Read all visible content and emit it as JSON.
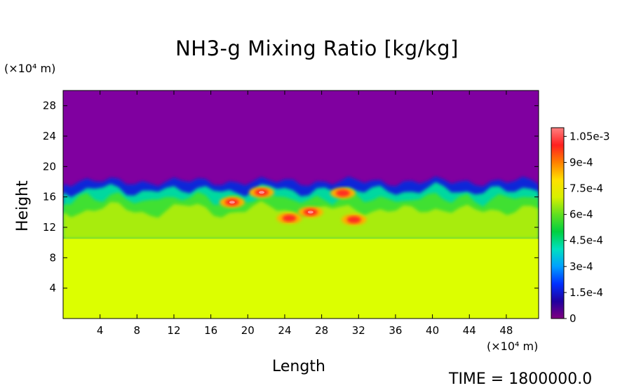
{
  "chart_data": {
    "type": "heatmap",
    "title": "NH3-g Mixing Ratio [kg/kg]",
    "xlabel": "Length",
    "ylabel": "Height",
    "x_unit": "(×10⁴ m)",
    "y_unit": "(×10⁴ m)",
    "xlim": [
      0,
      51.5
    ],
    "ylim": [
      0,
      30
    ],
    "x_ticks": [
      4,
      8,
      12,
      16,
      20,
      24,
      28,
      32,
      36,
      40,
      44,
      48
    ],
    "y_ticks": [
      4,
      8,
      12,
      16,
      20,
      24,
      28
    ],
    "colorbar": {
      "min": 0,
      "max": 0.0011,
      "labels": [
        "1.05e-3",
        "9e-4",
        "7.5e-4",
        "6e-4",
        "4.5e-4",
        "3e-4",
        "1.5e-4",
        "0"
      ],
      "values": [
        0.00105,
        0.0009,
        0.00075,
        0.0006,
        0.00045,
        0.0003,
        0.00015,
        0
      ],
      "colors": [
        "#800080",
        "#2000a0",
        "#0030ff",
        "#00a0ff",
        "#00e0c0",
        "#00d040",
        "#60e020",
        "#d8f000",
        "#ffe000",
        "#ff8000",
        "#ff2020",
        "#ff8080"
      ]
    },
    "regions": {
      "upper_value": 0,
      "upper_color": "#8000a0",
      "lower_value": 0.00075,
      "lower_color": "#dcff00",
      "mixing_layer_height": [
        10.5,
        18
      ],
      "hotspots": [
        {
          "x": 18.3,
          "y": 15.3,
          "value": 0.00105
        },
        {
          "x": 21.5,
          "y": 16.6,
          "value": 0.0011
        },
        {
          "x": 24.5,
          "y": 13.2,
          "value": 0.00095
        },
        {
          "x": 26.8,
          "y": 14.0,
          "value": 0.00105
        },
        {
          "x": 31.5,
          "y": 13.0,
          "value": 0.0009
        },
        {
          "x": 30.3,
          "y": 16.5,
          "value": 0.00095
        }
      ]
    }
  },
  "footer": {
    "time_label": "TIME = 1800000.0"
  }
}
